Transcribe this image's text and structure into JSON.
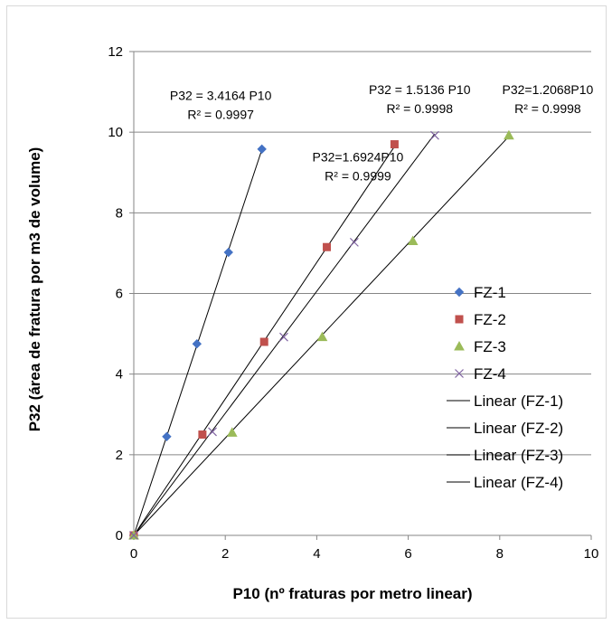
{
  "chart_data": {
    "type": "scatter",
    "xlabel": "P10 (nº fraturas por metro linear)",
    "ylabel": "P32 (área de fratura por m3 de volume)",
    "xlim": [
      0,
      10
    ],
    "ylim": [
      0,
      12
    ],
    "x_ticks": [
      0,
      2,
      4,
      6,
      8,
      10
    ],
    "y_ticks": [
      0,
      2,
      4,
      6,
      8,
      10,
      12
    ],
    "grid": "horizontal",
    "legend_position": "right",
    "series": [
      {
        "name": "FZ-1",
        "marker": "diamond",
        "color": "#4472c4",
        "points": [
          [
            0,
            0
          ],
          [
            0.72,
            2.45
          ],
          [
            1.38,
            4.75
          ],
          [
            2.07,
            7.02
          ],
          [
            2.8,
            9.58
          ]
        ],
        "fit": {
          "label": "Linear (FZ-1)",
          "slope": 3.4164,
          "equation": "P32 = 3.4164 P10",
          "r2": "R² = 0.9997",
          "x_end": 2.8
        }
      },
      {
        "name": "FZ-2",
        "marker": "square",
        "color": "#c0504d",
        "points": [
          [
            0,
            0
          ],
          [
            1.5,
            2.5
          ],
          [
            2.85,
            4.8
          ],
          [
            4.22,
            7.15
          ],
          [
            5.7,
            9.7
          ]
        ],
        "fit": {
          "label": "Linear (FZ-2)",
          "slope": 1.6924,
          "equation": "P32=1.6924P10",
          "r2": "R² = 0.9999",
          "x_end": 5.7
        }
      },
      {
        "name": "FZ-3",
        "marker": "triangle",
        "color": "#9bbb59",
        "points": [
          [
            0,
            0
          ],
          [
            2.15,
            2.55
          ],
          [
            4.12,
            4.92
          ],
          [
            6.1,
            7.3
          ],
          [
            8.2,
            9.92
          ]
        ],
        "fit": {
          "label": "Linear (FZ-3)",
          "slope": 1.2068,
          "equation": "P32=1.2068P10",
          "r2": "R² = 0.9998",
          "x_end": 8.2
        }
      },
      {
        "name": "FZ-4",
        "marker": "x",
        "color": "#8064a2",
        "points": [
          [
            0,
            0
          ],
          [
            1.72,
            2.57
          ],
          [
            3.28,
            4.92
          ],
          [
            4.82,
            7.27
          ],
          [
            6.58,
            9.92
          ]
        ],
        "fit": {
          "label": "Linear (FZ-4)",
          "slope": 1.5136,
          "equation": "P32 = 1.5136 P10",
          "r2": "R² = 0.9998",
          "x_end": 6.58
        }
      }
    ]
  }
}
